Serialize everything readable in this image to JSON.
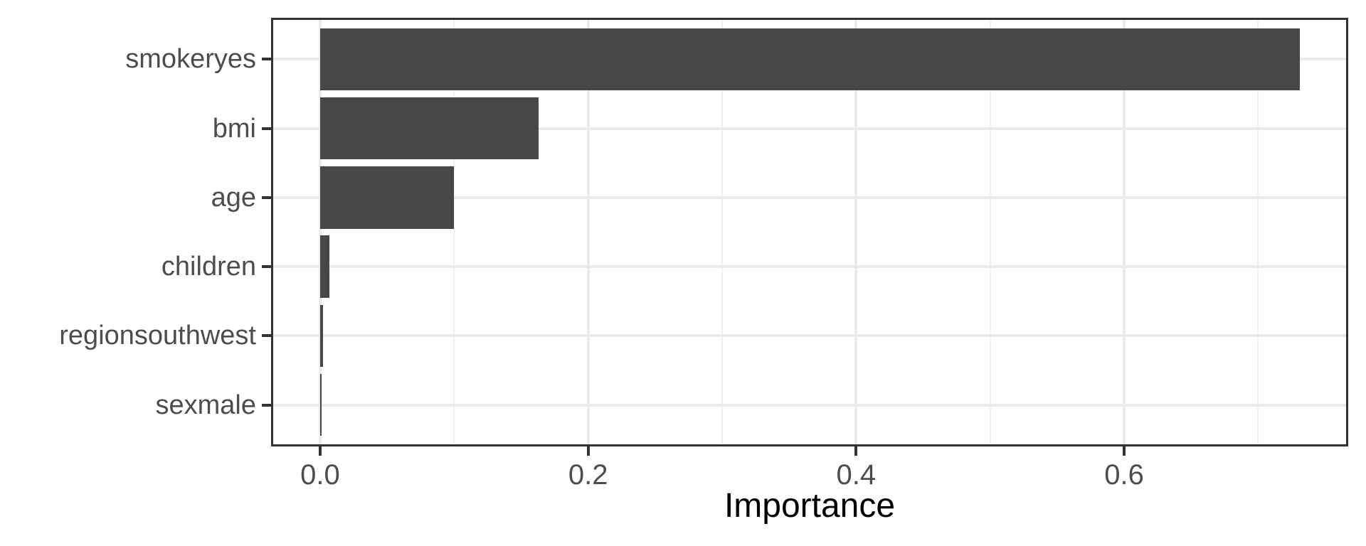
{
  "chart_data": {
    "type": "bar",
    "orientation": "horizontal",
    "title": "",
    "xlabel": "Importance",
    "ylabel": "",
    "categories": [
      "smokeryes",
      "bmi",
      "age",
      "children",
      "regionsouthwest",
      "sexmale"
    ],
    "values": [
      0.731,
      0.163,
      0.1,
      0.0067,
      0.0023,
      0.0012
    ],
    "x_axis": {
      "tick_values": [
        0.0,
        0.2,
        0.4,
        0.6
      ],
      "tick_labels": [
        "0.0",
        "0.2",
        "0.4",
        "0.6"
      ],
      "minor_tick_values": [
        0.1,
        0.3,
        0.5,
        0.7
      ],
      "xlim": [
        -0.0366,
        0.7672
      ]
    },
    "grid": "major horizontal at category centers; major + minor vertical",
    "legend_position": "none",
    "colors": {
      "bar_fill": "#474747",
      "panel_border": "#333333",
      "tick_mark": "#333333",
      "grid_major": "#ebebeb",
      "grid_minor": "#f0f0f0",
      "axis_text": "#4d4d4d",
      "axis_title": "#000000",
      "background": "#ffffff"
    }
  }
}
